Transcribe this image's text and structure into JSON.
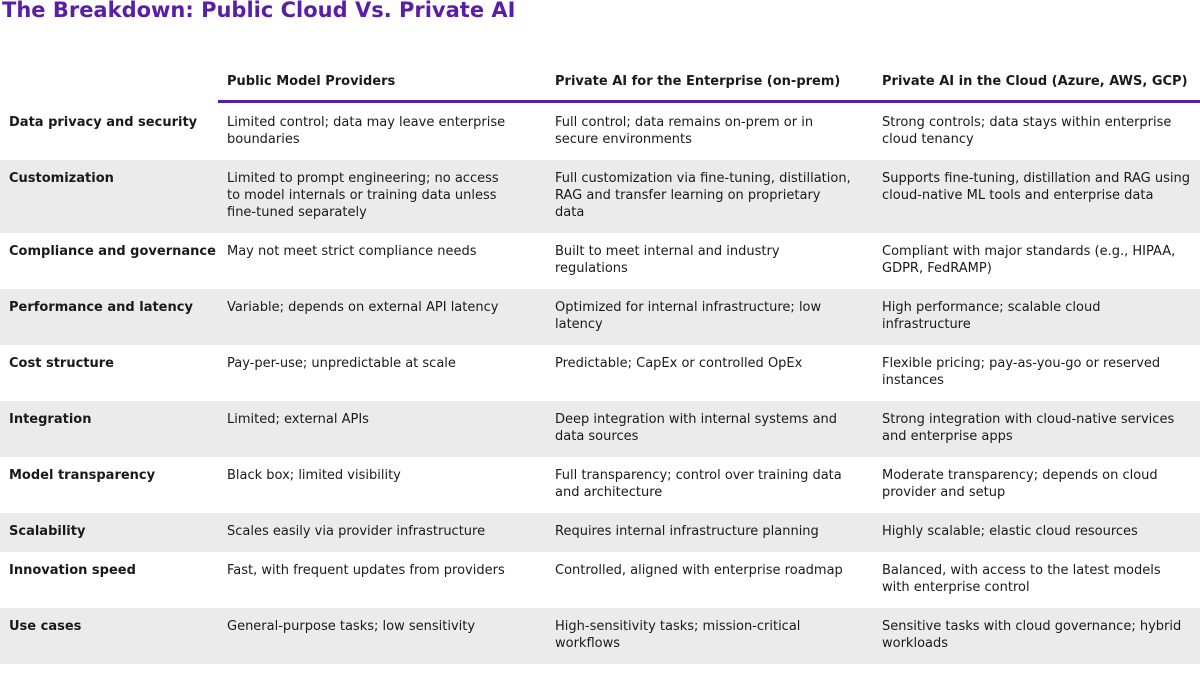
{
  "header": {
    "title": "The Breakdown: Public Cloud Vs. Private AI"
  },
  "table": {
    "columns": [
      "Public Model Providers",
      "Private AI for the Enterprise (on-prem)",
      "Private AI in the Cloud (Azure, AWS, GCP)"
    ],
    "rows": [
      {
        "label": "Data privacy and security",
        "cells": [
          "Limited control; data may leave enterprise boundaries",
          "Full control; data remains on-prem or in secure environments",
          "Strong controls; data stays within enterprise cloud tenancy"
        ]
      },
      {
        "label": "Customization",
        "cells": [
          "Limited to prompt engineering; no access to model internals or training data unless fine-tuned separately",
          "Full customization via fine-tuning, distillation, RAG and transfer learning on proprietary data",
          "Supports fine-tuning, distillation and RAG using cloud-native ML tools and enterprise data"
        ]
      },
      {
        "label": "Compliance and governance",
        "cells": [
          "May not meet strict compliance needs",
          "Built to meet internal and industry regulations",
          "Compliant with major standards (e.g., HIPAA, GDPR, FedRAMP)"
        ]
      },
      {
        "label": "Performance and latency",
        "cells": [
          "Variable; depends on external API latency",
          "Optimized for internal infrastructure; low latency",
          "High performance; scalable cloud infrastructure"
        ]
      },
      {
        "label": "Cost structure",
        "cells": [
          "Pay-per-use; unpredictable at scale",
          "Predictable; CapEx or controlled OpEx",
          "Flexible pricing; pay-as-you-go or reserved instances"
        ]
      },
      {
        "label": "Integration",
        "cells": [
          "Limited; external APIs",
          "Deep integration with internal systems and data sources",
          "Strong integration with cloud-native services and enterprise apps"
        ]
      },
      {
        "label": "Model transparency",
        "cells": [
          "Black box; limited visibility",
          "Full transparency; control over training data and architecture",
          "Moderate transparency; depends on cloud provider and setup"
        ]
      },
      {
        "label": "Scalability",
        "cells": [
          "Scales easily via provider infrastructure",
          "Requires internal infrastructure planning",
          "Highly scalable; elastic cloud resources"
        ]
      },
      {
        "label": "Innovation speed",
        "cells": [
          "Fast, with frequent updates from providers",
          "Controlled, aligned with enterprise roadmap",
          "Balanced, with access to the latest models with enterprise control"
        ]
      },
      {
        "label": "Use cases",
        "cells": [
          "General-purpose tasks; low sensitivity",
          "High-sensitivity tasks; mission-critical workflows",
          "Sensitive tasks with cloud governance; hybrid workloads"
        ]
      }
    ]
  }
}
